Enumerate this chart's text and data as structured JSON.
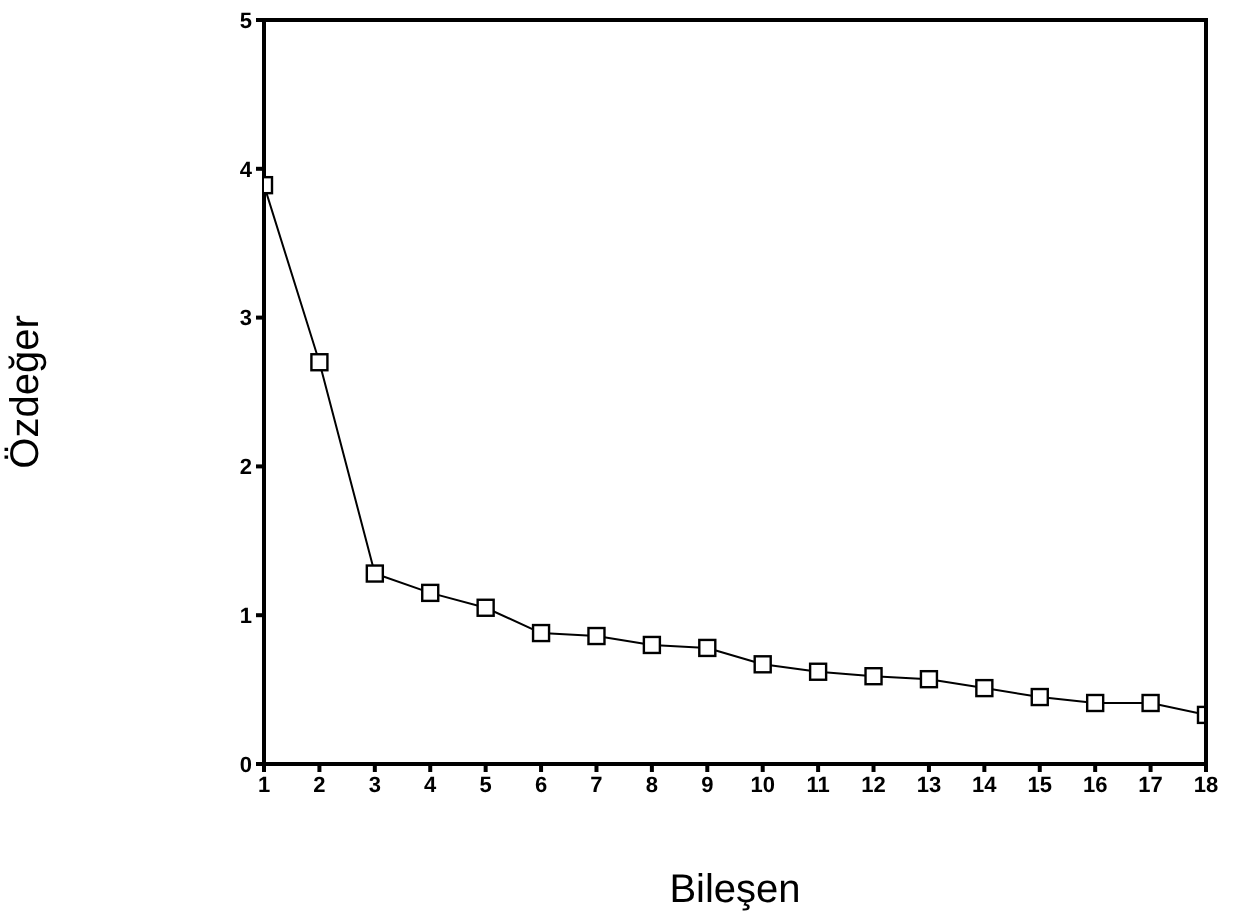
{
  "chart_data": {
    "type": "line",
    "xlabel": "Bileşen",
    "ylabel": "Özdeğer",
    "x": [
      1,
      2,
      3,
      4,
      5,
      6,
      7,
      8,
      9,
      10,
      11,
      12,
      13,
      14,
      15,
      16,
      17,
      18
    ],
    "series": [
      {
        "color": "#000000",
        "values": [
          3.89,
          2.7,
          1.28,
          1.15,
          1.05,
          0.88,
          0.86,
          0.8,
          0.78,
          0.67,
          0.62,
          0.59,
          0.57,
          0.51,
          0.45,
          0.41,
          0.41,
          0.33
        ]
      }
    ],
    "xlim": [
      1,
      18
    ],
    "xticks": [
      1,
      2,
      3,
      4,
      5,
      6,
      7,
      8,
      9,
      10,
      11,
      12,
      13,
      14,
      15,
      16,
      17,
      18
    ],
    "ylim": [
      0,
      5
    ],
    "yticks": [
      0,
      1,
      2,
      3,
      4,
      5
    ],
    "marker": "square",
    "line_style": "solid",
    "grid": false,
    "legend": false
  }
}
